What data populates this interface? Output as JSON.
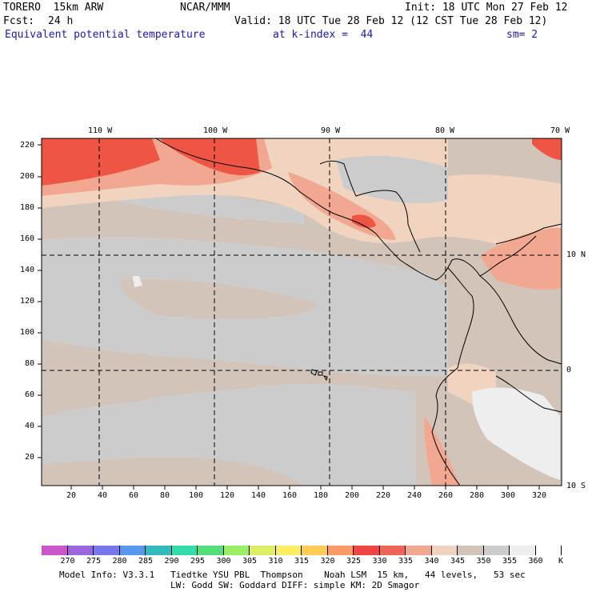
{
  "header": {
    "model": "TORERO  15km ARW",
    "org": "NCAR/MMM",
    "init": "Init: 18 UTC Mon 27 Feb 12",
    "fcst_label": "Fcst:",
    "fcst_value": "24 h",
    "valid": "Valid: 18 UTC Tue 28 Feb 12 (12 CST Tue 28 Feb 12)",
    "field": "Equivalent potential temperature",
    "level": "at k-index =  44",
    "smooth": "sm= 2"
  },
  "map": {
    "top_lon_labels": [
      "110 W",
      "100 W",
      "90 W",
      "80 W",
      "70 W"
    ],
    "right_lat_labels": [
      "10 N",
      "0",
      "10 S"
    ],
    "left_grid_labels": [
      "220",
      "200",
      "180",
      "160",
      "140",
      "120",
      "100",
      "80",
      "60",
      "40",
      "20"
    ],
    "bottom_grid_labels": [
      "20",
      "40",
      "60",
      "80",
      "100",
      "120",
      "140",
      "160",
      "180",
      "200",
      "220",
      "240",
      "260",
      "280",
      "300",
      "320"
    ]
  },
  "colorbar": {
    "unit": "K",
    "ticks": [
      "270",
      "275",
      "280",
      "285",
      "290",
      "295",
      "300",
      "305",
      "310",
      "315",
      "320",
      "325",
      "330",
      "335",
      "340",
      "345",
      "350",
      "355",
      "360"
    ],
    "colors": [
      "#cc55cc",
      "#9966dd",
      "#7777ee",
      "#5599ee",
      "#33bbbb",
      "#33ddaa",
      "#55dd77",
      "#99ee66",
      "#ddee66",
      "#ffee66",
      "#ffcc55",
      "#ff9966",
      "#ee4444",
      "#ee6655",
      "#f2a890",
      "#f0d4c0",
      "#d2c4b8",
      "#cccccc",
      "#eeeeee",
      "#ffffff"
    ]
  },
  "footer": {
    "line1": "Model Info: V3.3.1   Tiedtke YSU PBL  Thompson    Noah LSM  15 km,   44 levels,   53 sec",
    "line2": "LW: Godd SW: Goddard DIFF: simple KM: 2D Smagor"
  }
}
